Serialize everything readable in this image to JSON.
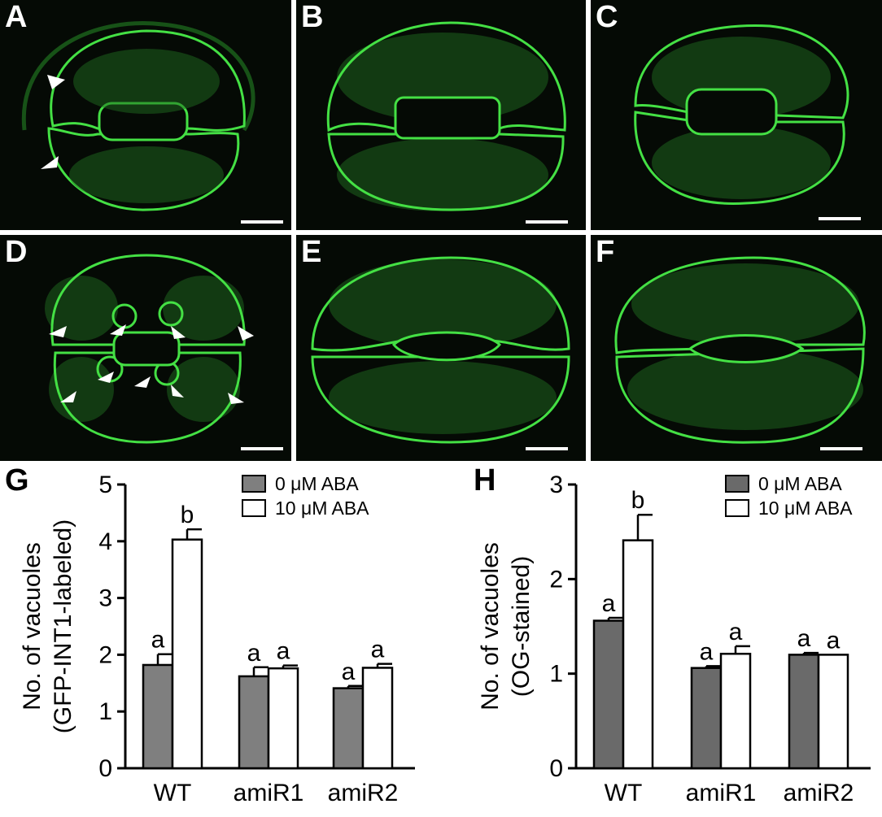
{
  "panels": [
    {
      "letter": "A"
    },
    {
      "letter": "B"
    },
    {
      "letter": "C"
    },
    {
      "letter": "D"
    },
    {
      "letter": "E"
    },
    {
      "letter": "F"
    }
  ],
  "colors": {
    "stain": "#3ad93a",
    "bar_filled": "#7f7f7f",
    "bar_filled_h": "#6a6a6a",
    "bar_open": "#ffffff"
  },
  "chart_data": [
    {
      "panel_letter": "G",
      "type": "bar",
      "ylabel_lines": [
        "No. of vacuoles",
        "(GFP-INT1-labeled)"
      ],
      "ylim": [
        0,
        5
      ],
      "yticks": [
        "0",
        "1",
        "2",
        "3",
        "4",
        "5"
      ],
      "categories": [
        "WT",
        "amiR1",
        "amiR2"
      ],
      "series": [
        {
          "name": "0 μM ABA",
          "values": [
            1.82,
            1.62,
            1.41
          ],
          "errors": [
            0.19,
            0.16,
            0.04
          ],
          "letters": [
            "a",
            "a",
            "a"
          ]
        },
        {
          "name": "10 μM ABA",
          "values": [
            4.03,
            1.76,
            1.77
          ],
          "errors": [
            0.18,
            0.05,
            0.07
          ],
          "letters": [
            "b",
            "a",
            "a"
          ]
        }
      ],
      "legend_position": "top-right"
    },
    {
      "panel_letter": "H",
      "type": "bar",
      "ylabel_lines": [
        "No. of vacuoles",
        "(OG-stained)"
      ],
      "ylim": [
        0,
        3
      ],
      "yticks": [
        "0",
        "1",
        "2",
        "3"
      ],
      "categories": [
        "WT",
        "amiR1",
        "amiR2"
      ],
      "series": [
        {
          "name": "0 μM ABA",
          "values": [
            1.56,
            1.06,
            1.2
          ],
          "errors": [
            0.03,
            0.02,
            0.02
          ],
          "letters": [
            "a",
            "a",
            "a"
          ]
        },
        {
          "name": "10 μM ABA",
          "values": [
            2.41,
            1.21,
            1.2
          ],
          "errors": [
            0.27,
            0.08,
            0.0
          ],
          "letters": [
            "b",
            "a",
            "a"
          ]
        }
      ],
      "legend_position": "top-right"
    }
  ]
}
